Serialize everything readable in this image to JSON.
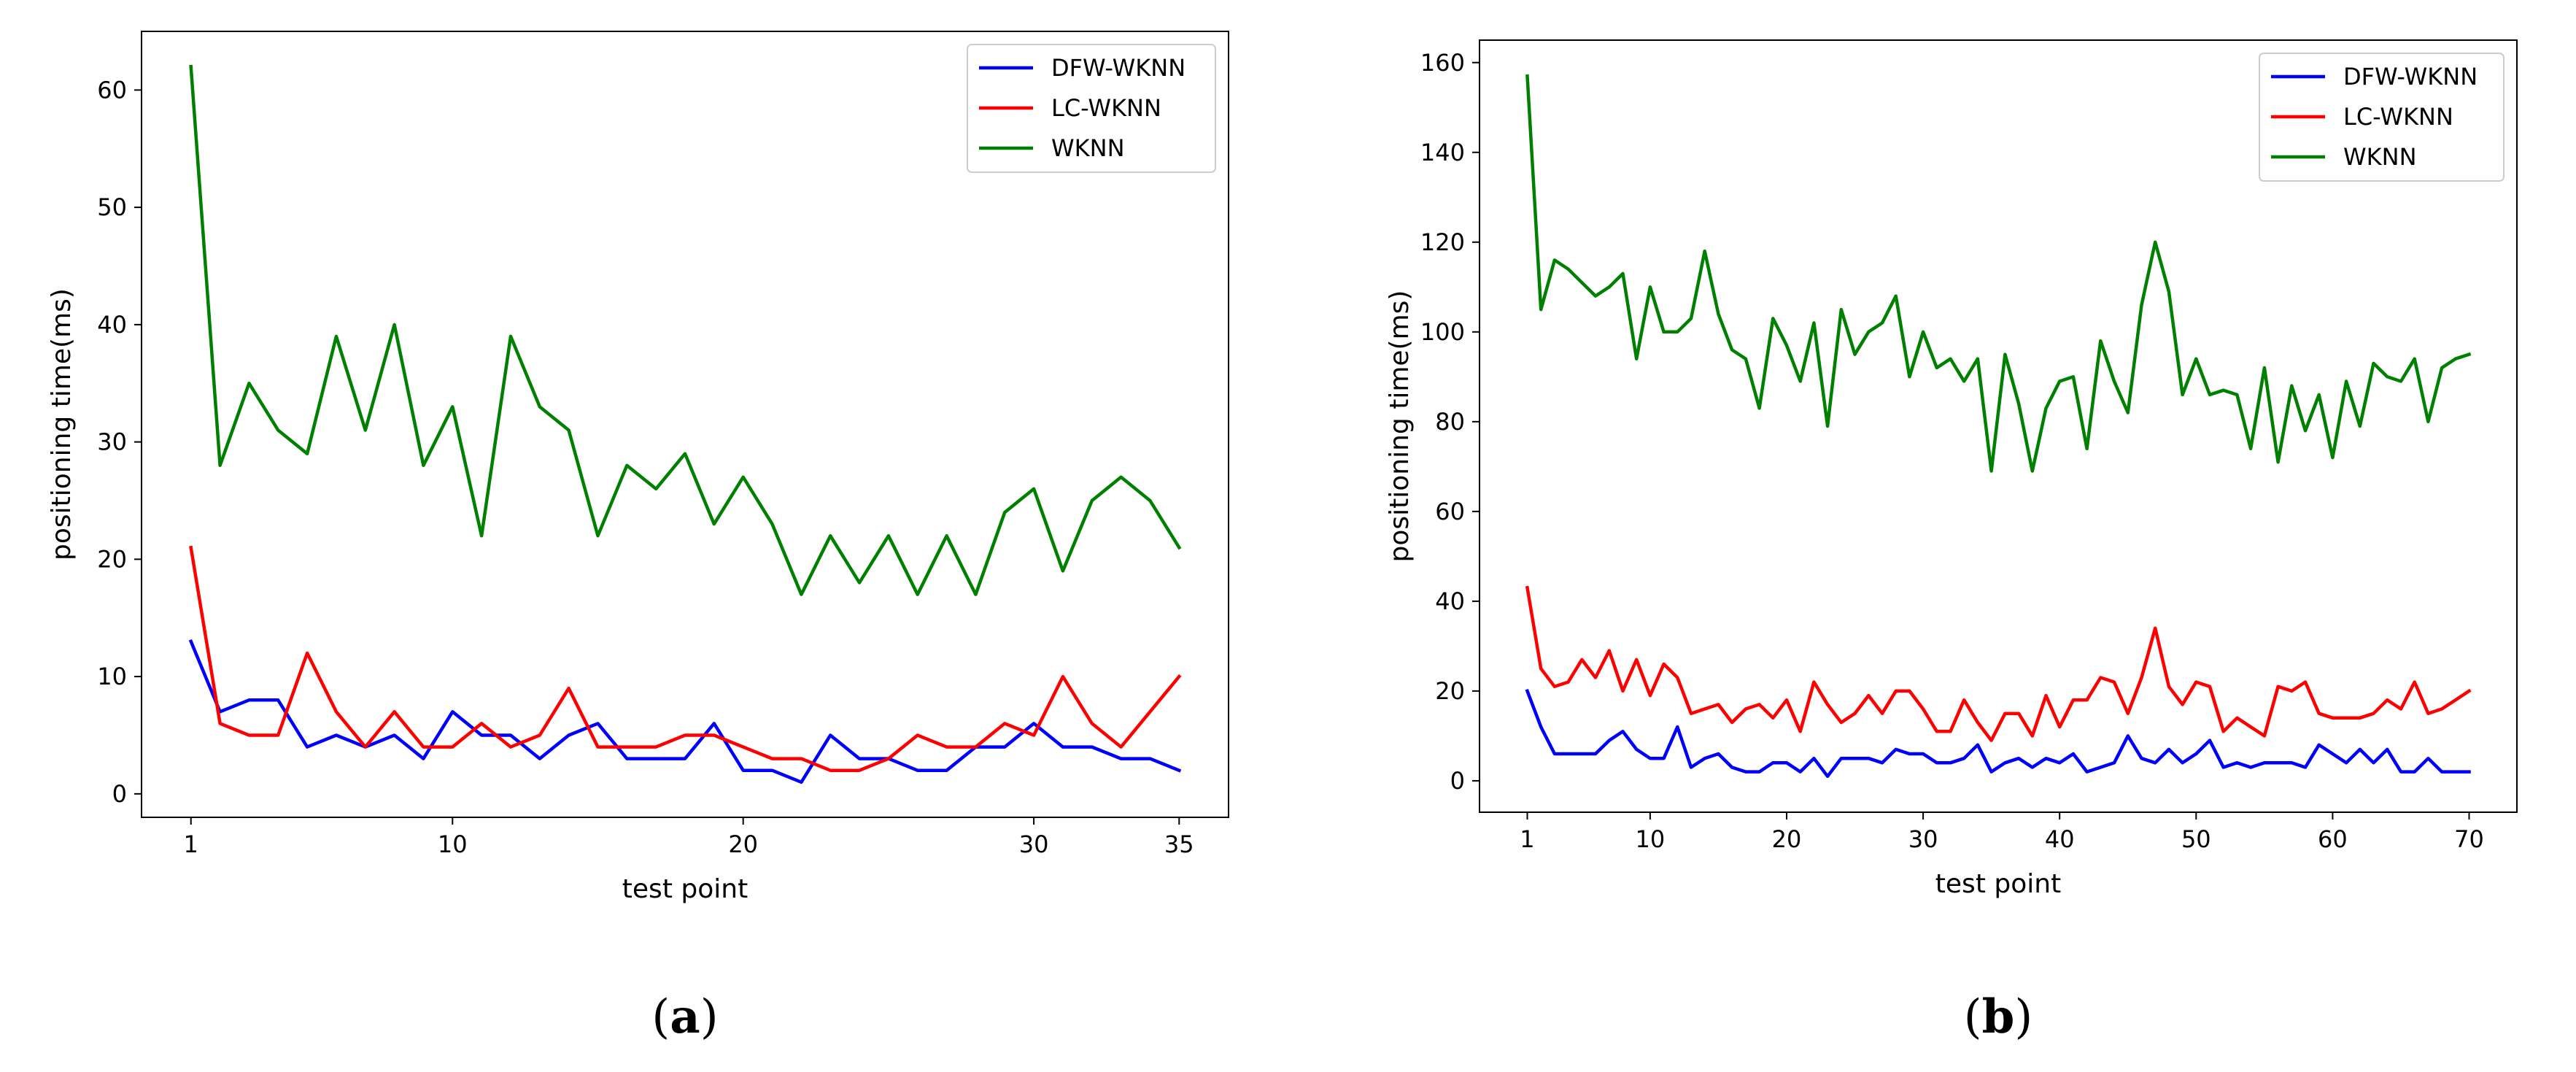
{
  "chart_data": [
    {
      "panel_label": "(a)",
      "panel_letter": "a",
      "type": "line",
      "xlabel": "test point",
      "ylabel": "positioning time(ms)",
      "xlim": [
        -0.7,
        36.7
      ],
      "ylim": [
        -2,
        65
      ],
      "xticks": [
        1,
        10,
        20,
        30,
        35
      ],
      "yticks": [
        0,
        10,
        20,
        30,
        40,
        50,
        60
      ],
      "legend_position": "top-right",
      "x": [
        1,
        2,
        3,
        4,
        5,
        6,
        7,
        8,
        9,
        10,
        11,
        12,
        13,
        14,
        15,
        16,
        17,
        18,
        19,
        20,
        21,
        22,
        23,
        24,
        25,
        26,
        27,
        28,
        29,
        30,
        31,
        32,
        33,
        34,
        35
      ],
      "series": [
        {
          "name": "DFW-WKNN",
          "color": "#0000ff",
          "values": [
            13,
            7,
            8,
            8,
            4,
            5,
            4,
            5,
            3,
            7,
            5,
            5,
            3,
            5,
            6,
            3,
            3,
            3,
            6,
            2,
            2,
            1,
            5,
            3,
            3,
            2,
            2,
            4,
            4,
            6,
            4,
            4,
            3,
            3,
            2
          ]
        },
        {
          "name": "LC-WKNN",
          "color": "#ff0000",
          "values": [
            21,
            6,
            5,
            5,
            12,
            7,
            4,
            7,
            4,
            4,
            6,
            4,
            5,
            9,
            4,
            4,
            4,
            5,
            5,
            4,
            3,
            3,
            2,
            2,
            3,
            5,
            4,
            4,
            6,
            5,
            10,
            6,
            4,
            7,
            10
          ]
        },
        {
          "name": "WKNN",
          "color": "#008000",
          "values": [
            62,
            28,
            35,
            31,
            29,
            39,
            31,
            40,
            28,
            33,
            22,
            39,
            33,
            31,
            22,
            28,
            26,
            29,
            23,
            27,
            23,
            17,
            22,
            18,
            22,
            17,
            22,
            17,
            24,
            26,
            19,
            25,
            27,
            25,
            21
          ]
        }
      ]
    },
    {
      "panel_label": "(b)",
      "panel_letter": "b",
      "type": "line",
      "xlabel": "test point",
      "ylabel": "positioning time(ms)",
      "xlim": [
        -2.5,
        73.5
      ],
      "ylim": [
        -7,
        165
      ],
      "xticks": [
        1,
        10,
        20,
        30,
        40,
        50,
        60,
        70
      ],
      "yticks": [
        0,
        20,
        40,
        60,
        80,
        100,
        120,
        140,
        160
      ],
      "legend_position": "top-right",
      "x": [
        1,
        2,
        3,
        4,
        5,
        6,
        7,
        8,
        9,
        10,
        11,
        12,
        13,
        14,
        15,
        16,
        17,
        18,
        19,
        20,
        21,
        22,
        23,
        24,
        25,
        26,
        27,
        28,
        29,
        30,
        31,
        32,
        33,
        34,
        35,
        36,
        37,
        38,
        39,
        40,
        41,
        42,
        43,
        44,
        45,
        46,
        47,
        48,
        49,
        50,
        51,
        52,
        53,
        54,
        55,
        56,
        57,
        58,
        59,
        60,
        61,
        62,
        63,
        64,
        65,
        66,
        67,
        68,
        69,
        70
      ],
      "series": [
        {
          "name": "DFW-WKNN",
          "color": "#0000ff",
          "values": [
            20,
            12,
            6,
            6,
            6,
            6,
            9,
            11,
            7,
            5,
            5,
            12,
            3,
            5,
            6,
            3,
            2,
            2,
            4,
            4,
            2,
            5,
            1,
            5,
            5,
            5,
            4,
            7,
            6,
            6,
            4,
            4,
            5,
            8,
            2,
            4,
            5,
            3,
            5,
            4,
            6,
            2,
            3,
            4,
            10,
            5,
            4,
            7,
            4,
            6,
            9,
            3,
            4,
            3,
            4,
            4,
            4,
            3,
            8,
            6,
            4,
            7,
            4,
            7,
            2,
            2,
            5,
            2,
            2,
            2
          ]
        },
        {
          "name": "LC-WKNN",
          "color": "#ff0000",
          "values": [
            43,
            25,
            21,
            22,
            27,
            23,
            29,
            20,
            27,
            19,
            26,
            23,
            15,
            16,
            17,
            13,
            16,
            17,
            14,
            18,
            11,
            22,
            17,
            13,
            15,
            19,
            15,
            20,
            20,
            16,
            11,
            11,
            18,
            13,
            9,
            15,
            15,
            10,
            19,
            12,
            18,
            18,
            23,
            22,
            15,
            23,
            34,
            21,
            17,
            22,
            21,
            11,
            14,
            12,
            10,
            21,
            20,
            22,
            15,
            14,
            14,
            14,
            15,
            18,
            16,
            22,
            15,
            16,
            18,
            20
          ]
        },
        {
          "name": "WKNN",
          "color": "#008000",
          "values": [
            157,
            105,
            116,
            114,
            111,
            108,
            110,
            113,
            94,
            110,
            100,
            100,
            103,
            118,
            104,
            96,
            94,
            83,
            103,
            97,
            89,
            102,
            79,
            105,
            95,
            100,
            102,
            108,
            90,
            100,
            92,
            94,
            89,
            94,
            69,
            95,
            84,
            69,
            83,
            89,
            90,
            74,
            98,
            89,
            82,
            106,
            120,
            109,
            86,
            94,
            86,
            87,
            86,
            74,
            92,
            71,
            88,
            78,
            86,
            72,
            89,
            79,
            93,
            90,
            89,
            94,
            80,
            92,
            94,
            95
          ]
        }
      ]
    }
  ]
}
